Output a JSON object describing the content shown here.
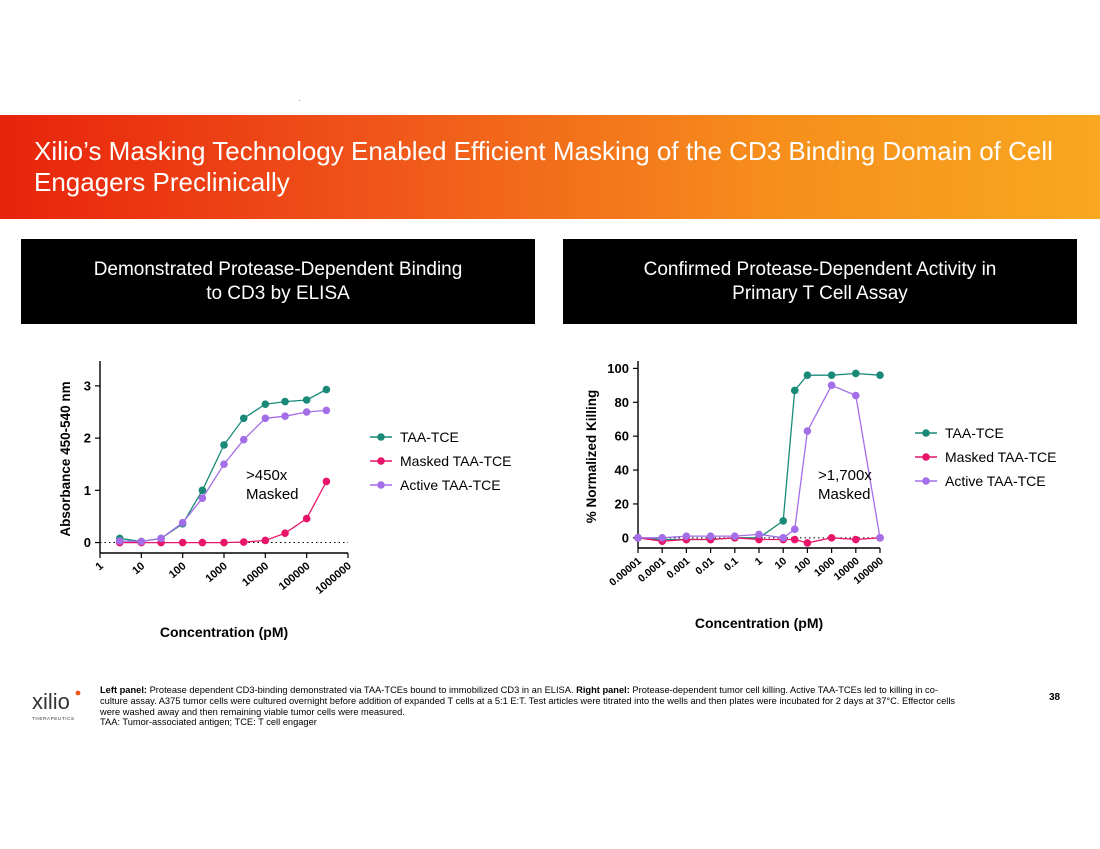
{
  "slide": {
    "title": "Xilio’s Masking Technology Enabled Efficient Masking of the CD3 Binding Domain of Cell Engagers Preclinically",
    "page_number": "38",
    "banner_colors": [
      "#e8230c",
      "#f9a820"
    ]
  },
  "panels": {
    "left": {
      "heading_line1": "Demonstrated Protease-Dependent Binding",
      "heading_line2": "to CD3 by ELISA"
    },
    "right": {
      "heading_line1": "Confirmed Protease-Dependent Activity in",
      "heading_line2": "Primary T Cell Assay"
    }
  },
  "colors": {
    "taa_tce": "#1a8a78",
    "masked": "#e8156b",
    "active": "#a46ee8"
  },
  "chart_data": [
    {
      "type": "line",
      "title": "",
      "xlabel": "Concentration (pM)",
      "ylabel": "Absorbance 450-540 nm",
      "xscale": "log",
      "xlim": [
        1,
        1000000
      ],
      "ylim": [
        -0.2,
        3.4
      ],
      "x_ticks": [
        "1",
        "10",
        "100",
        "1000",
        "10000",
        "100000",
        "1000000"
      ],
      "y_ticks": [
        "0",
        "1",
        "2",
        "3"
      ],
      "annotation_line1": ">450x",
      "annotation_line2": "Masked",
      "legend": [
        "TAA-TCE",
        "Masked TAA-TCE",
        "Active TAA-TCE"
      ],
      "series": [
        {
          "name": "TAA-TCE",
          "x": [
            3,
            10,
            30,
            100,
            300,
            1000,
            3000,
            10000,
            30000,
            100000,
            300000
          ],
          "y": [
            0.08,
            0.02,
            0.08,
            0.36,
            1.0,
            1.87,
            2.38,
            2.65,
            2.7,
            2.73,
            2.93
          ]
        },
        {
          "name": "Masked TAA-TCE",
          "x": [
            3,
            10,
            30,
            100,
            300,
            1000,
            3000,
            10000,
            30000,
            100000,
            300000
          ],
          "y": [
            0.0,
            0.0,
            0.0,
            0.0,
            0.0,
            0.0,
            0.01,
            0.04,
            0.18,
            0.46,
            1.17
          ]
        },
        {
          "name": "Active TAA-TCE",
          "x": [
            3,
            10,
            30,
            100,
            300,
            1000,
            3000,
            10000,
            30000,
            100000,
            300000
          ],
          "y": [
            0.03,
            0.02,
            0.08,
            0.38,
            0.85,
            1.5,
            1.97,
            2.38,
            2.42,
            2.5,
            2.53
          ]
        }
      ]
    },
    {
      "type": "line",
      "title": "",
      "xlabel": "Concentration (pM)",
      "ylabel": "% Normalized Killing",
      "xscale": "log",
      "xlim": [
        1e-05,
        100000
      ],
      "ylim": [
        -6,
        102
      ],
      "x_ticks": [
        "0.00001",
        "0.0001",
        "0.001",
        "0.01",
        "0.1",
        "1",
        "10",
        "100",
        "1000",
        "10000",
        "100000"
      ],
      "y_ticks": [
        "0",
        "20",
        "40",
        "60",
        "80",
        "100"
      ],
      "annotation_line1": ">1,700x",
      "annotation_line2": "Masked",
      "legend": [
        "TAA-TCE",
        "Masked TAA-TCE",
        "Active TAA-TCE"
      ],
      "series": [
        {
          "name": "TAA-TCE",
          "x": [
            1e-05,
            0.0001,
            0.001,
            0.01,
            0.1,
            1,
            10,
            30,
            100,
            1000,
            10000,
            100000
          ],
          "y": [
            0,
            -1,
            -1,
            -1,
            0,
            0,
            10,
            87,
            96,
            96,
            97,
            96
          ]
        },
        {
          "name": "Masked TAA-TCE",
          "x": [
            1e-05,
            0.0001,
            0.001,
            0.01,
            0.1,
            1,
            10,
            30,
            100,
            1000,
            10000,
            100000
          ],
          "y": [
            0,
            -2,
            -1,
            -1,
            0,
            -1,
            -1,
            -1,
            -3,
            0,
            -1,
            0
          ]
        },
        {
          "name": "Active TAA-TCE",
          "x": [
            1e-05,
            0.0001,
            0.001,
            0.01,
            0.1,
            1,
            10,
            30,
            100,
            1000,
            10000,
            100000
          ],
          "y": [
            0,
            0,
            1,
            1,
            1,
            2,
            0,
            5,
            63,
            90,
            84,
            0
          ]
        }
      ]
    }
  ],
  "footer": {
    "logo_text": "xilio",
    "logo_subtext": "THERAPEUTICS",
    "left_label": "Left panel:",
    "left_text": " Protease dependent CD3-binding demonstrated via TAA-TCEs bound to immobilized CD3 in an ELISA. ",
    "right_label": "Right panel:",
    "right_text": " Protease-dependent tumor cell killing. Active TAA-TCEs led to killing in co-culture assay. A375 tumor cells were cultured overnight before addition of expanded T cells at a 5:1 E:T. Test articles were titrated into the wells and then plates were incubated for 2 days at 37°C. Effector cells were washed away and then remaining viable tumor cells were measured.",
    "abbrev": "TAA: Tumor-associated antigen; TCE: T cell engager"
  }
}
